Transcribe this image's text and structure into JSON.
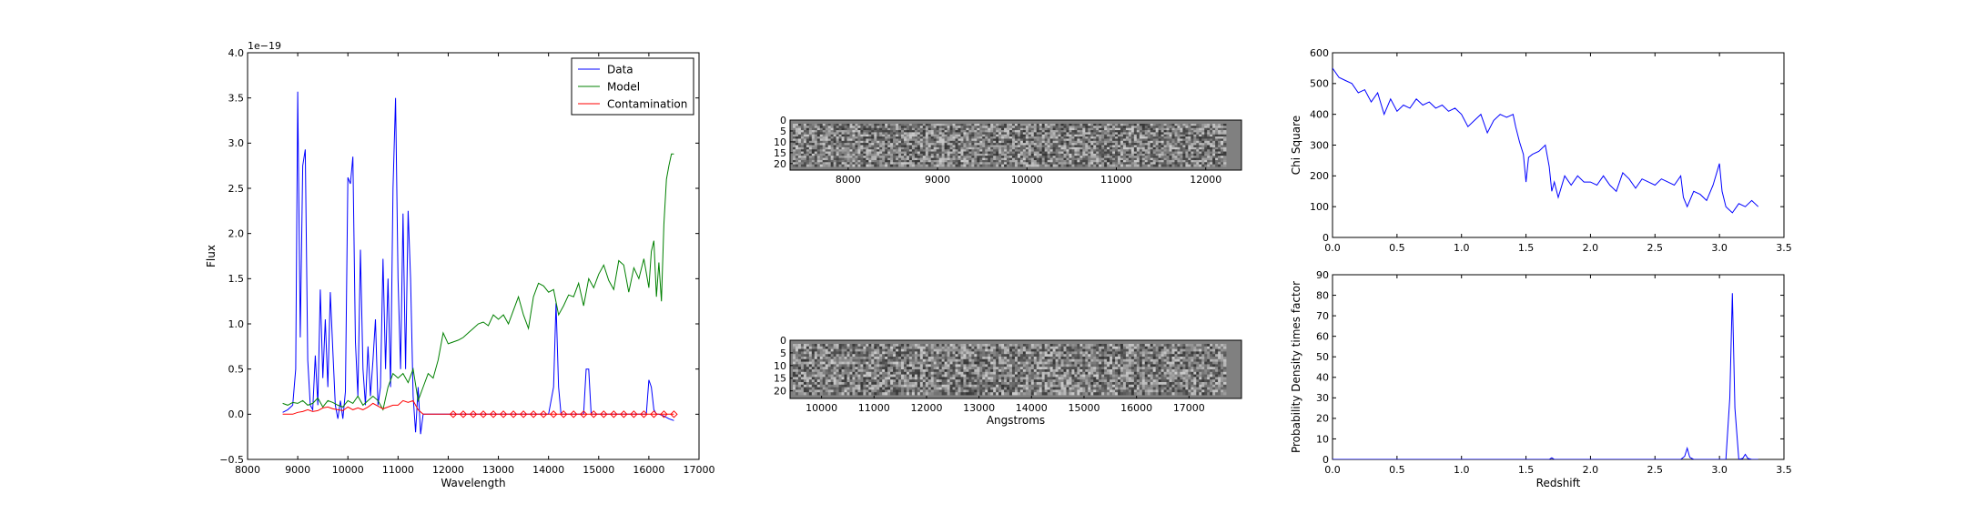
{
  "colors": {
    "data": "#0000ff",
    "model": "#008000",
    "contamination": "#ff0000",
    "axes": "#000000",
    "background": "#ffffff",
    "image_gray": "#808080"
  },
  "chart_data": [
    {
      "id": "spectrum",
      "type": "line",
      "xlabel": "Wavelength",
      "ylabel": "Flux",
      "offset_text": "1e−19",
      "xlim": [
        8000,
        17000
      ],
      "ylim": [
        -0.5,
        4.0
      ],
      "xticks": [
        8000,
        9000,
        10000,
        11000,
        12000,
        13000,
        14000,
        15000,
        16000,
        17000
      ],
      "yticks": [
        -0.5,
        0.0,
        0.5,
        1.0,
        1.5,
        2.0,
        2.5,
        3.0,
        3.5,
        4.0
      ],
      "xtick_labels": [
        "8000",
        "9000",
        "10000",
        "11000",
        "12000",
        "13000",
        "14000",
        "15000",
        "16000",
        "17000"
      ],
      "ytick_labels": [
        "−0.5",
        "0.0",
        "0.5",
        "1.0",
        "1.5",
        "2.0",
        "2.5",
        "3.0",
        "3.5",
        "4.0"
      ],
      "legend": {
        "position": "upper right",
        "entries": [
          "Data",
          "Model",
          "Contamination"
        ]
      },
      "series": [
        {
          "name": "Data",
          "color": "#0000ff",
          "x": [
            8700,
            8800,
            8900,
            8960,
            9000,
            9050,
            9100,
            9150,
            9200,
            9250,
            9300,
            9350,
            9400,
            9450,
            9500,
            9550,
            9600,
            9650,
            9700,
            9750,
            9800,
            9850,
            9900,
            9950,
            10000,
            10050,
            10100,
            10150,
            10200,
            10250,
            10300,
            10350,
            10400,
            10450,
            10500,
            10550,
            10600,
            10650,
            10700,
            10750,
            10800,
            10850,
            10900,
            10950,
            11000,
            11050,
            11100,
            11150,
            11200,
            11250,
            11300,
            11350,
            11400,
            11450,
            11500,
            11550,
            11600,
            11650,
            11700,
            11800,
            11900,
            12000,
            12200,
            12400,
            12600,
            12800,
            13000,
            13200,
            13400,
            13600,
            13800,
            14000,
            14100,
            14150,
            14200,
            14250,
            14300,
            14400,
            14500,
            14600,
            14700,
            14750,
            14800,
            14850,
            14900,
            15000,
            15200,
            15400,
            15600,
            15800,
            15950,
            16000,
            16050,
            16100,
            16150,
            16200,
            16300,
            16400,
            16500
          ],
          "y": [
            0.02,
            0.05,
            0.1,
            0.5,
            3.57,
            0.85,
            2.75,
            2.93,
            0.6,
            0.1,
            0.05,
            0.65,
            0.1,
            1.38,
            0.4,
            1.05,
            0.3,
            1.35,
            0.7,
            0.1,
            -0.05,
            0.15,
            -0.05,
            0.25,
            2.62,
            2.55,
            2.85,
            0.8,
            0.2,
            1.82,
            0.5,
            0.1,
            0.75,
            0.2,
            0.6,
            1.05,
            0.1,
            0.3,
            1.72,
            0.5,
            1.5,
            0.3,
            2.5,
            3.5,
            1.5,
            0.5,
            2.22,
            0.5,
            2.25,
            1.5,
            0.2,
            -0.2,
            0.3,
            -0.22,
            0.0,
            0.0,
            0.0,
            0.0,
            0.0,
            0.0,
            0.0,
            0.0,
            0.0,
            0.0,
            0.0,
            0.0,
            0.0,
            0.0,
            0.0,
            0.0,
            0.0,
            0.0,
            0.3,
            1.23,
            0.3,
            0.0,
            0.0,
            0.0,
            0.0,
            0.0,
            0.0,
            0.5,
            0.5,
            0.0,
            0.0,
            0.0,
            0.0,
            0.0,
            0.0,
            0.0,
            0.0,
            0.38,
            0.3,
            0.05,
            0.0,
            0.0,
            -0.02,
            -0.05,
            -0.07
          ]
        },
        {
          "name": "Model",
          "color": "#008000",
          "x": [
            8700,
            8800,
            8900,
            9000,
            9100,
            9200,
            9300,
            9400,
            9500,
            9600,
            9700,
            9800,
            9900,
            10000,
            10100,
            10200,
            10300,
            10400,
            10500,
            10600,
            10700,
            10800,
            10900,
            11000,
            11100,
            11200,
            11300,
            11400,
            11500,
            11600,
            11700,
            11800,
            11900,
            12000,
            12100,
            12200,
            12300,
            12400,
            12500,
            12600,
            12700,
            12800,
            12900,
            13000,
            13100,
            13200,
            13300,
            13400,
            13500,
            13600,
            13700,
            13800,
            13900,
            14000,
            14100,
            14200,
            14300,
            14400,
            14500,
            14600,
            14700,
            14800,
            14900,
            15000,
            15100,
            15200,
            15300,
            15400,
            15500,
            15600,
            15700,
            15800,
            15900,
            16000,
            16050,
            16100,
            16150,
            16200,
            16250,
            16300,
            16350,
            16400,
            16450,
            16500
          ],
          "y": [
            0.12,
            0.1,
            0.13,
            0.12,
            0.15,
            0.1,
            0.12,
            0.18,
            0.08,
            0.15,
            0.13,
            0.1,
            0.08,
            0.15,
            0.12,
            0.2,
            0.1,
            0.15,
            0.2,
            0.15,
            0.05,
            0.3,
            0.45,
            0.4,
            0.45,
            0.35,
            0.5,
            0.15,
            0.3,
            0.45,
            0.4,
            0.6,
            0.9,
            0.78,
            0.8,
            0.82,
            0.85,
            0.9,
            0.95,
            1.0,
            1.02,
            0.98,
            1.1,
            1.05,
            1.1,
            1.0,
            1.15,
            1.3,
            1.1,
            0.95,
            1.3,
            1.45,
            1.42,
            1.35,
            1.38,
            1.1,
            1.2,
            1.32,
            1.3,
            1.45,
            1.2,
            1.5,
            1.4,
            1.55,
            1.65,
            1.48,
            1.38,
            1.7,
            1.65,
            1.35,
            1.62,
            1.5,
            1.72,
            1.4,
            1.8,
            1.92,
            1.3,
            1.68,
            1.25,
            2.1,
            2.6,
            2.75,
            2.88,
            2.88
          ]
        },
        {
          "name": "Contamination",
          "color": "#ff0000",
          "x": [
            8700,
            8800,
            8900,
            9000,
            9100,
            9200,
            9300,
            9400,
            9500,
            9600,
            9700,
            9800,
            9900,
            10000,
            10100,
            10200,
            10300,
            10400,
            10500,
            10600,
            10700,
            10800,
            10900,
            11000,
            11100,
            11200,
            11300,
            11400,
            11500,
            11600,
            12000,
            12500,
            13000,
            13500,
            14000,
            14500,
            15000,
            15500,
            16000,
            16200,
            16400,
            16500
          ],
          "y": [
            0.0,
            0.0,
            0.0,
            0.02,
            0.03,
            0.05,
            0.03,
            0.04,
            0.07,
            0.08,
            0.06,
            0.05,
            0.04,
            0.08,
            0.05,
            0.07,
            0.05,
            0.08,
            0.12,
            0.09,
            0.06,
            0.08,
            0.1,
            0.1,
            0.15,
            0.13,
            0.15,
            0.05,
            0.0,
            0.0,
            0.0,
            0.0,
            0.0,
            0.0,
            0.0,
            0.0,
            0.0,
            0.0,
            0.0,
            0.0,
            0.0,
            0.0
          ]
        }
      ],
      "markers": [
        {
          "color": "#ff0000",
          "shape": "diamond",
          "x": [
            12100,
            12300,
            12500,
            12700,
            12900,
            13100,
            13300,
            13500,
            13700,
            13900,
            14100,
            14300,
            14500,
            14700,
            14900,
            15100,
            15300,
            15500,
            15700,
            15900,
            16100,
            16300,
            16500
          ],
          "y": [
            0,
            0,
            0,
            0,
            0,
            0,
            0,
            0,
            0,
            0,
            0,
            0,
            0,
            0,
            0,
            0,
            0,
            0,
            0,
            0,
            0,
            0,
            0
          ]
        }
      ]
    },
    {
      "id": "image-top",
      "type": "heatmap",
      "colormap": "gray",
      "xlim": [
        7350,
        12400
      ],
      "ylim": [
        23,
        0
      ],
      "xticks": [
        8000,
        9000,
        10000,
        11000,
        12000
      ],
      "yticks": [
        0,
        5,
        10,
        15,
        20
      ],
      "xtick_labels": [
        "8000",
        "9000",
        "10000",
        "11000",
        "12000"
      ],
      "ytick_labels": [
        "0",
        "5",
        "10",
        "15",
        "20"
      ],
      "xlabel": ""
    },
    {
      "id": "image-bottom",
      "type": "heatmap",
      "colormap": "gray",
      "xlim": [
        9400,
        18000
      ],
      "ylim": [
        23,
        0
      ],
      "xticks": [
        10000,
        11000,
        12000,
        13000,
        14000,
        15000,
        16000,
        17000
      ],
      "yticks": [
        0,
        5,
        10,
        15,
        20
      ],
      "xtick_labels": [
        "10000",
        "11000",
        "12000",
        "13000",
        "14000",
        "15000",
        "16000",
        "17000"
      ],
      "ytick_labels": [
        "0",
        "5",
        "10",
        "15",
        "20"
      ],
      "xlabel": "Angstroms"
    },
    {
      "id": "chi-square",
      "type": "line",
      "xlabel": "",
      "ylabel": "Chi Square",
      "xlim": [
        0.0,
        3.5
      ],
      "ylim": [
        0,
        600
      ],
      "xticks": [
        0.0,
        0.5,
        1.0,
        1.5,
        2.0,
        2.5,
        3.0,
        3.5
      ],
      "yticks": [
        0,
        100,
        200,
        300,
        400,
        500,
        600
      ],
      "xtick_labels": [
        "0.0",
        "0.5",
        "1.0",
        "1.5",
        "2.0",
        "2.5",
        "3.0",
        "3.5"
      ],
      "ytick_labels": [
        "0",
        "100",
        "200",
        "300",
        "400",
        "500",
        "600"
      ],
      "series": [
        {
          "name": "",
          "color": "#0000ff",
          "x": [
            0.0,
            0.05,
            0.1,
            0.15,
            0.2,
            0.25,
            0.3,
            0.35,
            0.4,
            0.45,
            0.5,
            0.55,
            0.6,
            0.65,
            0.7,
            0.75,
            0.8,
            0.85,
            0.9,
            0.95,
            1.0,
            1.05,
            1.1,
            1.15,
            1.2,
            1.25,
            1.3,
            1.35,
            1.4,
            1.42,
            1.45,
            1.48,
            1.5,
            1.52,
            1.55,
            1.6,
            1.65,
            1.68,
            1.7,
            1.72,
            1.75,
            1.8,
            1.85,
            1.9,
            1.95,
            2.0,
            2.05,
            2.1,
            2.15,
            2.2,
            2.25,
            2.3,
            2.35,
            2.4,
            2.45,
            2.5,
            2.55,
            2.6,
            2.65,
            2.7,
            2.72,
            2.75,
            2.8,
            2.85,
            2.9,
            2.95,
            3.0,
            3.02,
            3.05,
            3.1,
            3.15,
            3.2,
            3.25,
            3.3
          ],
          "y": [
            550,
            520,
            510,
            500,
            470,
            480,
            440,
            470,
            400,
            450,
            410,
            430,
            420,
            450,
            430,
            440,
            420,
            430,
            410,
            420,
            400,
            360,
            380,
            400,
            340,
            380,
            400,
            390,
            400,
            360,
            310,
            270,
            180,
            260,
            270,
            280,
            300,
            230,
            150,
            180,
            130,
            200,
            170,
            200,
            180,
            180,
            170,
            200,
            170,
            150,
            210,
            190,
            160,
            190,
            180,
            170,
            190,
            180,
            170,
            200,
            130,
            100,
            150,
            140,
            120,
            170,
            240,
            150,
            100,
            80,
            110,
            100,
            120,
            100
          ]
        }
      ]
    },
    {
      "id": "probability",
      "type": "line",
      "xlabel": "Redshift",
      "ylabel": "Probability Density times factor",
      "xlim": [
        0.0,
        3.5
      ],
      "ylim": [
        0,
        90
      ],
      "xticks": [
        0.0,
        0.5,
        1.0,
        1.5,
        2.0,
        2.5,
        3.0,
        3.5
      ],
      "yticks": [
        0,
        10,
        20,
        30,
        40,
        50,
        60,
        70,
        80,
        90
      ],
      "xtick_labels": [
        "0.0",
        "0.5",
        "1.0",
        "1.5",
        "2.0",
        "2.5",
        "3.0",
        "3.5"
      ],
      "ytick_labels": [
        "0",
        "10",
        "20",
        "30",
        "40",
        "50",
        "60",
        "70",
        "80",
        "90"
      ],
      "series": [
        {
          "name": "",
          "color": "#0000ff",
          "x": [
            0.0,
            1.68,
            1.7,
            1.72,
            2.7,
            2.73,
            2.75,
            2.77,
            2.8,
            3.05,
            3.08,
            3.1,
            3.12,
            3.15,
            3.18,
            3.2,
            3.22,
            3.25,
            3.3
          ],
          "y": [
            0,
            0,
            0.8,
            0,
            0,
            1.5,
            5.5,
            1.0,
            0,
            0,
            30,
            81,
            25,
            0,
            0.5,
            2.5,
            0.5,
            0,
            0
          ]
        }
      ]
    }
  ]
}
